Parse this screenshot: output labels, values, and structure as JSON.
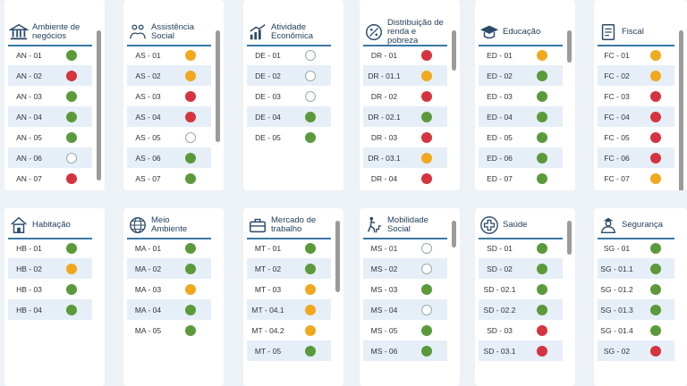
{
  "colors": {
    "green": "#5b9a3a",
    "red": "#d43440",
    "orange": "#f0a91e",
    "header_line": "#3a78a6"
  },
  "cards": [
    {
      "id": "ambiente",
      "title": "Ambiente de\nnegócios",
      "icon": "bank-icon",
      "rows": [
        [
          "AN - 01",
          "green"
        ],
        [
          "AN - 02",
          "red"
        ],
        [
          "AN - 03",
          "green"
        ],
        [
          "AN - 04",
          "green"
        ],
        [
          "AN - 05",
          "green"
        ],
        [
          "AN - 06",
          "empty"
        ],
        [
          "AN - 07",
          "red"
        ]
      ]
    },
    {
      "id": "assistencia",
      "title": "Assistência\nSocial",
      "icon": "people-hands-icon",
      "rows": [
        [
          "AS - 01",
          "orange"
        ],
        [
          "AS - 02",
          "orange"
        ],
        [
          "AS - 03",
          "red"
        ],
        [
          "AS - 04",
          "red"
        ],
        [
          "AS - 05",
          "empty"
        ],
        [
          "AS - 06",
          "green"
        ],
        [
          "AS - 07",
          "green"
        ]
      ]
    },
    {
      "id": "atividade",
      "title": "Atividade\nEconômica",
      "icon": "growth-chart-icon",
      "rows": [
        [
          "DE - 01",
          "empty"
        ],
        [
          "DE - 02",
          "empty"
        ],
        [
          "DE - 03",
          "empty"
        ],
        [
          "DE - 04",
          "green"
        ],
        [
          "DE - 05",
          "green"
        ]
      ]
    },
    {
      "id": "distribuicao",
      "title": "Distribuição de\nrenda e pobreza",
      "icon": "coin-icon",
      "rows": [
        [
          "DR - 01",
          "red"
        ],
        [
          "DR - 01.1",
          "orange"
        ],
        [
          "DR - 02",
          "red"
        ],
        [
          "DR - 02.1",
          "green"
        ],
        [
          "DR - 03",
          "red"
        ],
        [
          "DR - 03.1",
          "orange"
        ],
        [
          "DR - 04",
          "red"
        ]
      ]
    },
    {
      "id": "educacao",
      "title": "Educação",
      "icon": "graduation-cap-icon",
      "rows": [
        [
          "ED - 01",
          "orange"
        ],
        [
          "ED - 02",
          "green"
        ],
        [
          "ED - 03",
          "green"
        ],
        [
          "ED - 04",
          "green"
        ],
        [
          "ED - 05",
          "green"
        ],
        [
          "ED - 06",
          "green"
        ],
        [
          "ED - 07",
          "green"
        ]
      ]
    },
    {
      "id": "fiscal",
      "title": "Fiscal",
      "icon": "document-icon",
      "rows": [
        [
          "FC - 01",
          "orange"
        ],
        [
          "FC - 02",
          "orange"
        ],
        [
          "FC - 03",
          "red"
        ],
        [
          "FC - 04",
          "red"
        ],
        [
          "FC - 05",
          "red"
        ],
        [
          "FC - 06",
          "red"
        ],
        [
          "FC - 07",
          "orange"
        ]
      ]
    },
    {
      "id": "habitacao",
      "title": "Habitação",
      "icon": "house-icon",
      "rows": [
        [
          "HB - 01",
          "green"
        ],
        [
          "HB - 02",
          "orange"
        ],
        [
          "HB - 03",
          "green"
        ],
        [
          "HB - 04",
          "green"
        ]
      ]
    },
    {
      "id": "meio",
      "title": "Meio\nAmbiente",
      "icon": "globe-icon",
      "rows": [
        [
          "MA - 01",
          "green"
        ],
        [
          "MA - 02",
          "green"
        ],
        [
          "MA - 03",
          "orange"
        ],
        [
          "MA - 04",
          "green"
        ],
        [
          "MA - 05",
          "green"
        ]
      ]
    },
    {
      "id": "mercado",
      "title": "Mercado de\ntrabalho",
      "icon": "briefcase-icon",
      "rows": [
        [
          "MT - 01",
          "green"
        ],
        [
          "MT - 02",
          "green"
        ],
        [
          "MT - 03",
          "orange"
        ],
        [
          "MT - 04.1",
          "orange"
        ],
        [
          "MT - 04.2",
          "orange"
        ],
        [
          "MT - 05",
          "green"
        ]
      ]
    },
    {
      "id": "mobilidade",
      "title": "Mobilidade\nSocial",
      "icon": "climbing-person-icon",
      "rows": [
        [
          "MS - 01",
          "empty"
        ],
        [
          "MS - 02",
          "empty"
        ],
        [
          "MS - 03",
          "green"
        ],
        [
          "MS - 04",
          "empty"
        ],
        [
          "MS - 05",
          "green"
        ],
        [
          "MS - 06",
          "green"
        ]
      ]
    },
    {
      "id": "saude",
      "title": "Saúde",
      "icon": "medical-cross-icon",
      "rows": [
        [
          "SD - 01",
          "green"
        ],
        [
          "SD - 02",
          "green"
        ],
        [
          "SD - 02.1",
          "green"
        ],
        [
          "SD - 02.2",
          "green"
        ],
        [
          "SD - 03",
          "red"
        ],
        [
          "SD - 03.1",
          "red"
        ]
      ]
    },
    {
      "id": "seguranca",
      "title": "Segurança",
      "icon": "police-officer-icon",
      "rows": [
        [
          "SG - 01",
          "green"
        ],
        [
          "SG - 01.1",
          "green"
        ],
        [
          "SG - 01.2",
          "green"
        ],
        [
          "SG - 01.3",
          "green"
        ],
        [
          "SG - 01.4",
          "green"
        ],
        [
          "SG - 02",
          "red"
        ]
      ]
    }
  ]
}
